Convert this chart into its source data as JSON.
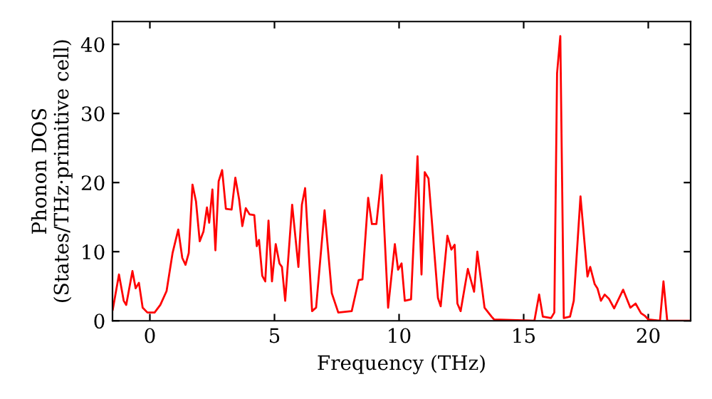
{
  "chart_data": {
    "type": "line",
    "xlabel": "Frequency (THz)",
    "ylabel": "Phonon DOS\n(States/THz·primitive cell)",
    "x": [
      -1.49,
      -1.24,
      -1.05,
      -0.95,
      -0.7,
      -0.57,
      -0.44,
      -0.29,
      -0.1,
      0.19,
      0.42,
      0.67,
      0.91,
      1.14,
      1.3,
      1.43,
      1.56,
      1.71,
      1.85,
      2.0,
      2.15,
      2.29,
      2.38,
      2.51,
      2.63,
      2.76,
      2.9,
      3.05,
      3.28,
      3.43,
      3.58,
      3.71,
      3.85,
      4.0,
      4.19,
      4.29,
      4.38,
      4.51,
      4.63,
      4.76,
      4.9,
      5.05,
      5.2,
      5.3,
      5.43,
      5.71,
      5.96,
      6.1,
      6.23,
      6.51,
      6.67,
      7.01,
      7.3,
      7.56,
      8.1,
      8.38,
      8.53,
      8.76,
      8.91,
      9.09,
      9.3,
      9.56,
      9.83,
      9.96,
      10.1,
      10.23,
      10.48,
      10.74,
      10.9,
      11.03,
      11.18,
      11.56,
      11.67,
      11.94,
      12.1,
      12.23,
      12.34,
      12.47,
      12.76,
      13.01,
      13.14,
      13.43,
      13.71,
      13.81,
      15.43,
      15.62,
      15.77,
      16.1,
      16.23,
      16.34,
      16.47,
      16.61,
      16.86,
      17.01,
      17.28,
      17.56,
      17.67,
      17.85,
      17.96,
      18.1,
      18.25,
      18.42,
      18.63,
      18.99,
      19.28,
      19.49,
      19.71,
      19.87,
      20.0,
      20.47,
      20.61,
      20.76,
      21.7
    ],
    "series": [
      {
        "color": "#ff0000",
        "values": [
          1.6,
          6.7,
          2.9,
          2.3,
          7.2,
          4.7,
          5.5,
          1.9,
          1.2,
          1.2,
          2.3,
          4.3,
          9.8,
          13.2,
          9.1,
          8.1,
          9.8,
          19.7,
          17.3,
          11.5,
          12.9,
          16.4,
          14.2,
          19.0,
          10.2,
          20.2,
          21.8,
          16.2,
          16.1,
          20.7,
          17.6,
          13.7,
          16.3,
          15.4,
          15.3,
          10.8,
          11.7,
          6.5,
          5.7,
          14.5,
          5.7,
          11.1,
          8.3,
          7.8,
          2.9,
          16.8,
          7.8,
          16.8,
          19.2,
          1.4,
          1.9,
          16.0,
          4.0,
          1.2,
          1.4,
          5.9,
          6.0,
          17.8,
          14.0,
          14.0,
          21.1,
          1.9,
          11.1,
          7.4,
          8.3,
          2.9,
          3.1,
          23.8,
          6.7,
          21.5,
          20.6,
          3.3,
          2.1,
          12.3,
          10.3,
          11.0,
          2.5,
          1.4,
          7.5,
          4.2,
          10.0,
          1.9,
          0.6,
          0.2,
          0,
          3.8,
          0.6,
          0.4,
          1.2,
          35.8,
          41.2,
          0.4,
          0.6,
          2.9,
          18.0,
          6.4,
          7.8,
          5.3,
          4.7,
          2.9,
          3.8,
          3.2,
          1.8,
          4.5,
          1.9,
          2.5,
          1.1,
          0.7,
          0.2,
          0,
          5.7,
          0,
          0
        ]
      }
    ],
    "xlim": [
      -1.5,
      21.7
    ],
    "ylim": [
      0,
      43.3
    ],
    "xticks": [
      0,
      5,
      10,
      15,
      20
    ],
    "yticks": [
      0,
      10,
      20,
      30,
      40
    ],
    "grid": false,
    "legend": false,
    "marker": "none",
    "line_style": "solid"
  }
}
